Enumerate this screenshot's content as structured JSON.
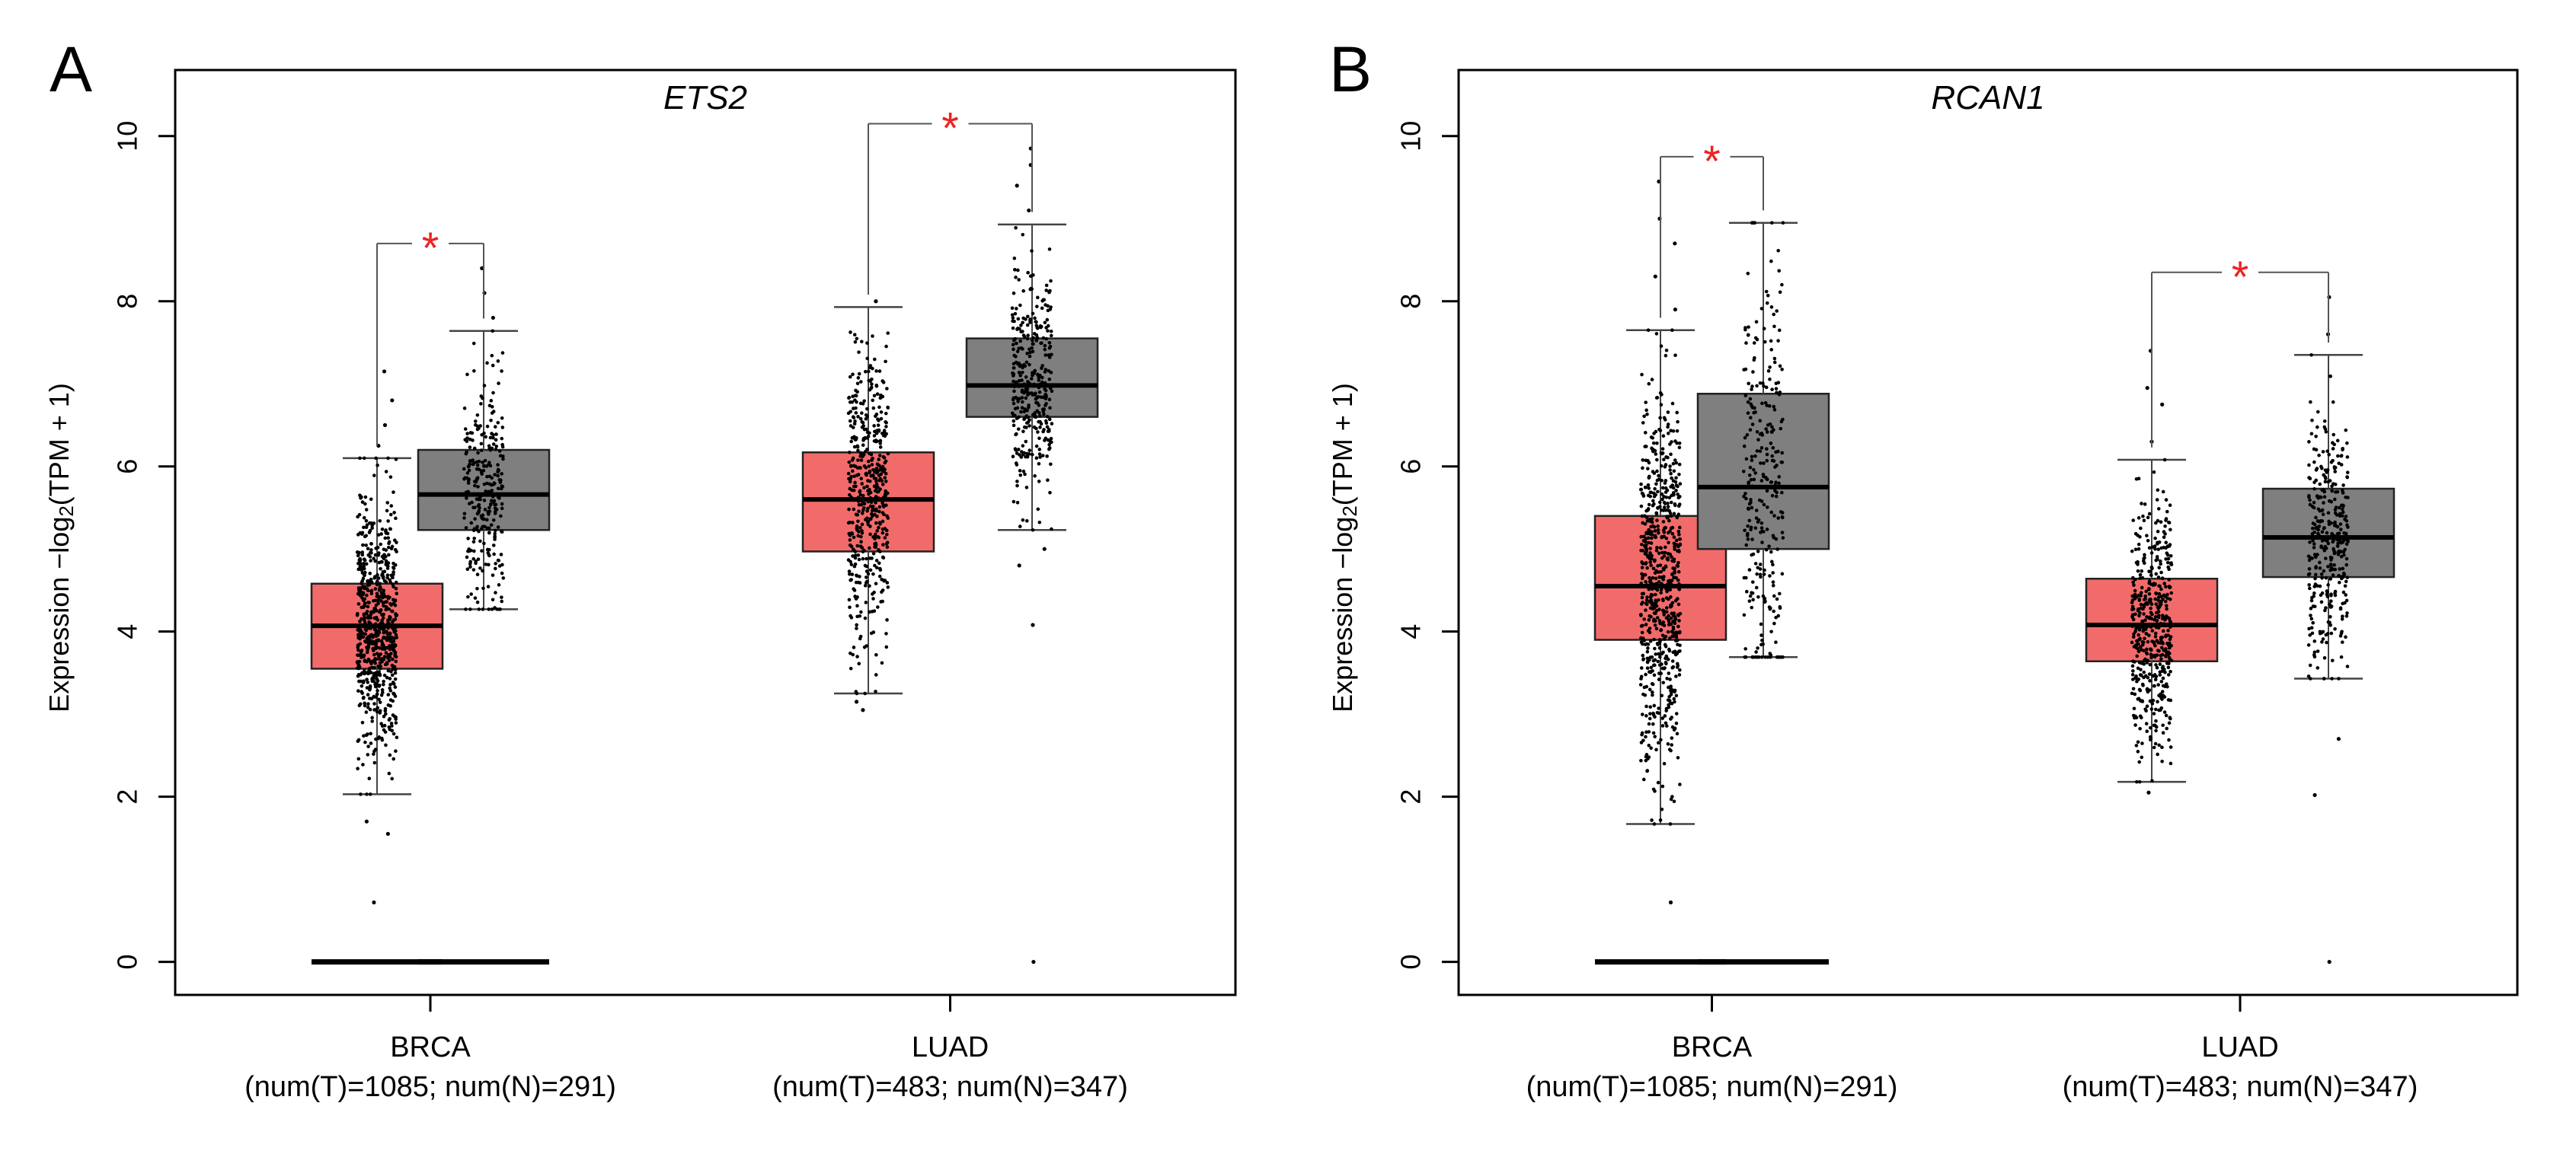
{
  "chart_data": [
    {
      "panel_label": "A",
      "type": "box",
      "title": "ETS2",
      "ylabel_prefix": "Expression −log",
      "ylabel_sub": "2",
      "ylabel_suffix": "(TPM + 1)",
      "ylim": [
        -0.4,
        10.8
      ],
      "yticks": [
        "0",
        "2",
        "4",
        "6",
        "8",
        "10"
      ],
      "groups": [
        {
          "name": "BRCA",
          "subtitle": "(num(T)=1085; num(N)=291)",
          "significance": "*",
          "boxes": [
            {
              "series": "T",
              "color": "#f26b6b",
              "n": 1085,
              "whisker_low": 2.03,
              "q1": 3.55,
              "median": 4.07,
              "q3": 4.58,
              "whisker_high": 6.1,
              "zero_values": true,
              "outliers": [
                0.72,
                1.55,
                1.7,
                6.25,
                6.5,
                6.8,
                7.15
              ]
            },
            {
              "series": "N",
              "color": "#7f7f7f",
              "n": 291,
              "whisker_low": 4.27,
              "q1": 5.23,
              "median": 5.66,
              "q3": 6.2,
              "whisker_high": 7.64,
              "zero_values": true,
              "outliers": [
                7.8,
                8.1,
                8.4
              ]
            }
          ]
        },
        {
          "name": "LUAD",
          "subtitle": "(num(T)=483; num(N)=347)",
          "significance": "*",
          "boxes": [
            {
              "series": "T",
              "color": "#f26b6b",
              "n": 483,
              "whisker_low": 3.25,
              "q1": 4.97,
              "median": 5.6,
              "q3": 6.17,
              "whisker_high": 7.93,
              "zero_values": false,
              "outliers": [
                3.05,
                3.15,
                8.0
              ]
            },
            {
              "series": "N",
              "color": "#7f7f7f",
              "n": 347,
              "whisker_low": 5.23,
              "q1": 6.6,
              "median": 6.98,
              "q3": 7.55,
              "whisker_high": 8.93,
              "zero_values": false,
              "outliers": [
                0.0,
                4.08,
                4.8,
                5.0,
                9.1,
                9.4,
                9.65,
                9.85
              ]
            }
          ]
        }
      ]
    },
    {
      "panel_label": "B",
      "type": "box",
      "title": "RCAN1",
      "ylabel_prefix": "Expression −log",
      "ylabel_sub": "2",
      "ylabel_suffix": "(TPM + 1)",
      "ylim": [
        -0.4,
        10.8
      ],
      "yticks": [
        "0",
        "2",
        "4",
        "6",
        "8",
        "10"
      ],
      "groups": [
        {
          "name": "BRCA",
          "subtitle": "(num(T)=1085; num(N)=291)",
          "significance": "*",
          "boxes": [
            {
              "series": "T",
              "color": "#f26b6b",
              "n": 1085,
              "whisker_low": 1.67,
              "q1": 3.9,
              "median": 4.55,
              "q3": 5.4,
              "whisker_high": 7.65,
              "zero_values": true,
              "outliers": [
                0.72,
                7.9,
                8.3,
                8.7,
                9.0,
                9.45
              ]
            },
            {
              "series": "N",
              "color": "#7f7f7f",
              "n": 291,
              "whisker_low": 3.69,
              "q1": 5.0,
              "median": 5.75,
              "q3": 6.88,
              "whisker_high": 8.95,
              "zero_values": true,
              "outliers": []
            }
          ]
        },
        {
          "name": "LUAD",
          "subtitle": "(num(T)=483; num(N)=347)",
          "significance": "*",
          "boxes": [
            {
              "series": "T",
              "color": "#f26b6b",
              "n": 483,
              "whisker_low": 2.18,
              "q1": 3.64,
              "median": 4.08,
              "q3": 4.64,
              "whisker_high": 6.08,
              "zero_values": false,
              "outliers": [
                2.05,
                6.3,
                6.75,
                6.95,
                7.4
              ]
            },
            {
              "series": "N",
              "color": "#7f7f7f",
              "n": 347,
              "whisker_low": 3.43,
              "q1": 4.66,
              "median": 5.14,
              "q3": 5.73,
              "whisker_high": 7.35,
              "zero_values": false,
              "outliers": [
                0.0,
                2.02,
                2.7,
                7.6,
                8.05
              ]
            }
          ]
        }
      ]
    }
  ]
}
